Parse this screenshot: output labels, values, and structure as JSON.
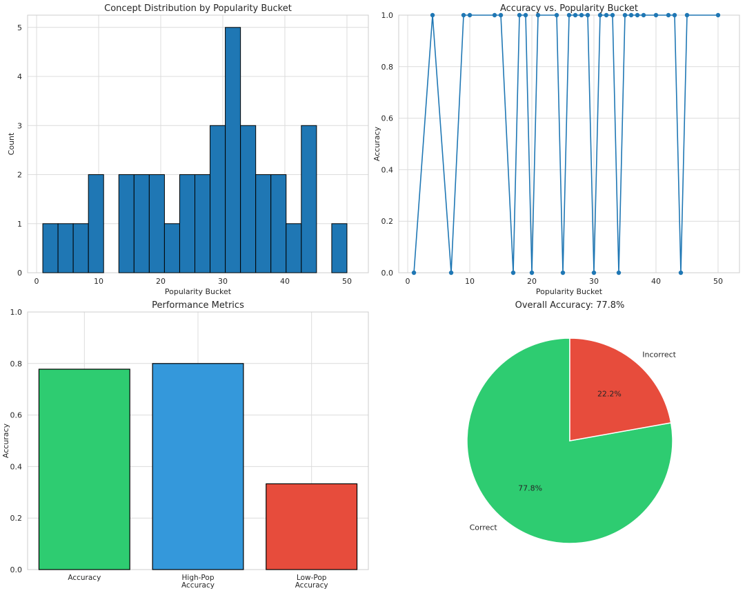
{
  "colors": {
    "grid": "#dcdcdc",
    "axis": "#cccccc",
    "hist_bar": "#1f77b4",
    "line": "#1f77b4",
    "edge": "#000000",
    "green": "#2ecc71",
    "blue": "#3498db",
    "red": "#e74c3c"
  },
  "chart_data": [
    {
      "type": "bar",
      "subtype": "histogram",
      "title": "Concept Distribution by Popularity Bucket",
      "xlabel": "Popularity Bucket",
      "ylabel": "Count",
      "xlim": [
        -1.45,
        53.45
      ],
      "ylim": [
        0,
        5.25
      ],
      "xticks": [
        0,
        10,
        20,
        30,
        40,
        50
      ],
      "yticks": [
        0,
        1,
        2,
        3,
        4,
        5
      ],
      "bin_edges": [
        1,
        3.45,
        5.9,
        8.35,
        10.8,
        13.25,
        15.7,
        18.15,
        20.6,
        23.05,
        25.5,
        27.95,
        30.4,
        32.85,
        35.3,
        37.75,
        40.2,
        42.65,
        45.1,
        47.55,
        50
      ],
      "counts": [
        1,
        1,
        1,
        2,
        0,
        2,
        2,
        2,
        1,
        2,
        2,
        3,
        5,
        3,
        2,
        2,
        1,
        3,
        0,
        1
      ],
      "grid": true
    },
    {
      "type": "line",
      "title": "Accuracy vs. Popularity Bucket",
      "xlabel": "Popularity Bucket",
      "ylabel": "Accuracy",
      "xlim": [
        -1.45,
        53.45
      ],
      "ylim": [
        0,
        1
      ],
      "xticks": [
        0,
        10,
        20,
        30,
        40,
        50
      ],
      "yticks": [
        0.0,
        0.2,
        0.4,
        0.6,
        0.8,
        1.0
      ],
      "x": [
        1,
        4,
        7,
        9,
        10,
        14,
        15,
        17,
        18,
        19,
        20,
        21,
        24,
        25,
        26,
        27,
        28,
        29,
        30,
        31,
        32,
        33,
        34,
        35,
        36,
        37,
        38,
        40,
        42,
        43,
        44,
        45,
        50
      ],
      "y": [
        0,
        1,
        0,
        1,
        1,
        1,
        1,
        0,
        1,
        1,
        0,
        1,
        1,
        0,
        1,
        1,
        1,
        1,
        0,
        1,
        1,
        1,
        0,
        1,
        1,
        1,
        1,
        1,
        1,
        1,
        0,
        1,
        1
      ],
      "marker": "circle",
      "grid": true
    },
    {
      "type": "bar",
      "title": "Performance Metrics",
      "xlabel": "",
      "ylabel": "Accuracy",
      "ylim": [
        0,
        1.0
      ],
      "yticks": [
        0.0,
        0.2,
        0.4,
        0.6,
        0.8,
        1.0
      ],
      "categories": [
        [
          "Accuracy"
        ],
        [
          "High-Pop",
          "Accuracy"
        ],
        [
          "Low-Pop",
          "Accuracy"
        ]
      ],
      "values": [
        0.778,
        0.8,
        0.333
      ],
      "bar_colors": [
        "#2ecc71",
        "#3498db",
        "#e74c3c"
      ],
      "grid": true
    },
    {
      "type": "pie",
      "title": "Overall Accuracy: 77.8%",
      "labels": [
        "Correct",
        "Incorrect"
      ],
      "values": [
        77.8,
        22.2
      ],
      "pct_labels": [
        "77.8%",
        "22.2%"
      ],
      "slice_colors": [
        "#2ecc71",
        "#e74c3c"
      ]
    }
  ]
}
